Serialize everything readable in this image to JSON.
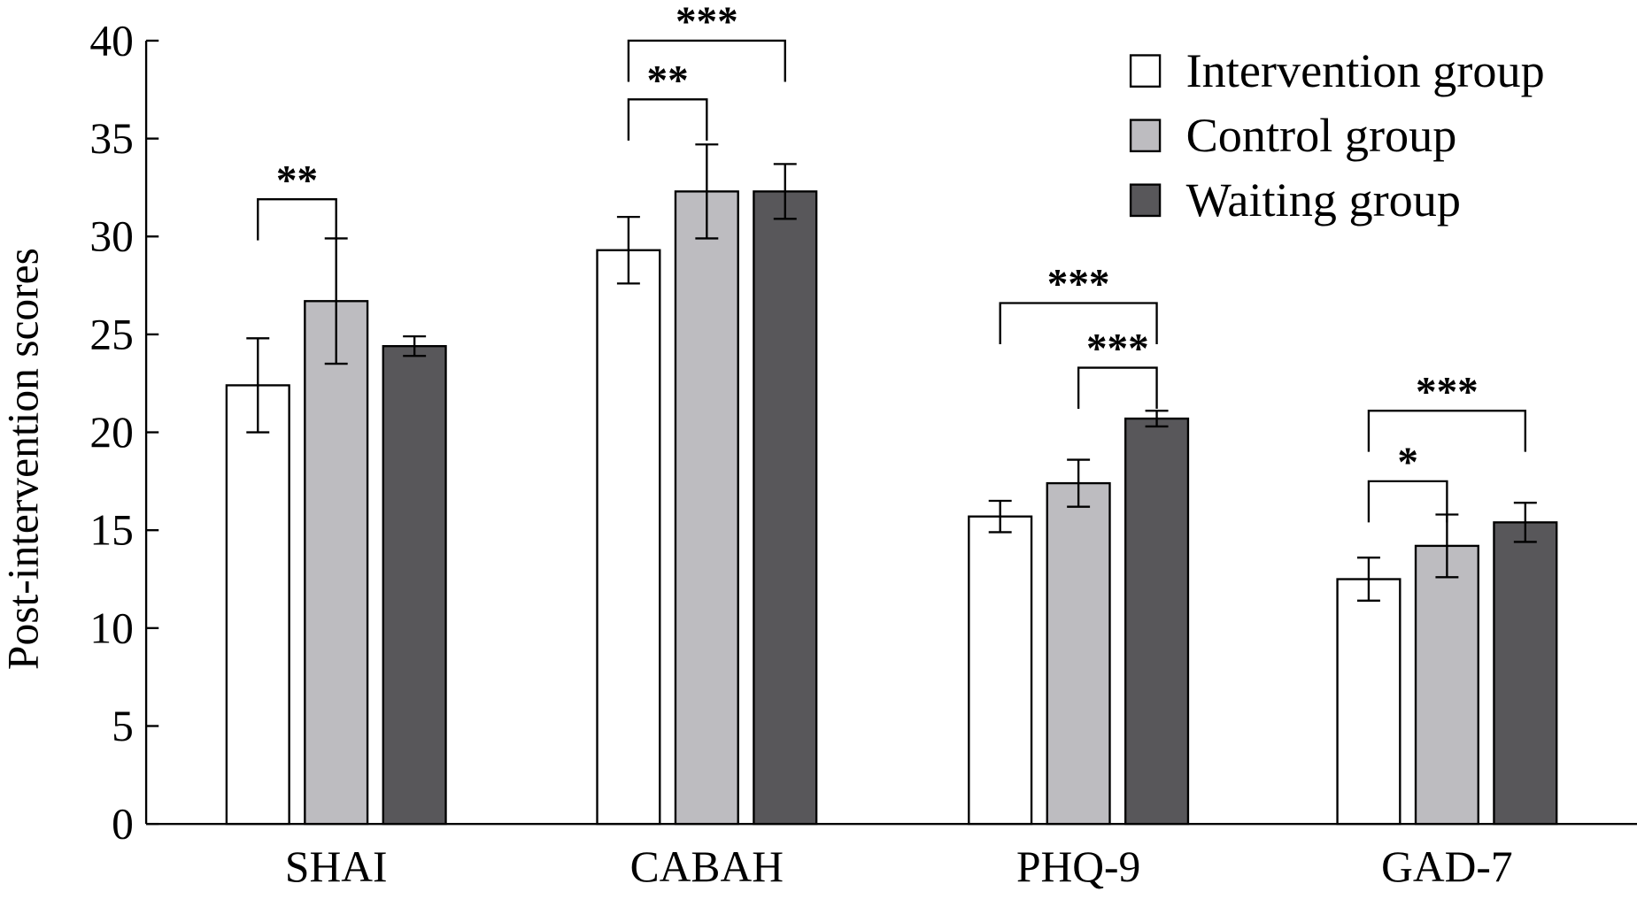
{
  "chart_data": {
    "type": "bar",
    "title": "",
    "xlabel": "",
    "ylabel": "Post-intervention scores",
    "ylim": [
      0,
      40
    ],
    "yticks": [
      "0",
      "5",
      "10",
      "15",
      "20",
      "25",
      "30",
      "35",
      "40"
    ],
    "categories": [
      "SHAI",
      "CABAH",
      "PHQ-9",
      "GAD-7"
    ],
    "legend_position": "top-right",
    "series": [
      {
        "name": "Intervention group",
        "color": "#ffffff",
        "values": [
          22.4,
          29.3,
          15.7,
          12.5
        ],
        "errors": [
          2.4,
          1.7,
          0.8,
          1.1
        ]
      },
      {
        "name": "Control group",
        "color": "#bdbcc0",
        "values": [
          26.7,
          32.3,
          17.4,
          14.2
        ],
        "errors": [
          3.2,
          2.4,
          1.2,
          1.6
        ]
      },
      {
        "name": "Waiting group",
        "color": "#58575a",
        "values": [
          24.4,
          32.3,
          20.7,
          15.4
        ],
        "errors": [
          0.5,
          1.4,
          0.4,
          1.0
        ]
      }
    ],
    "significance": [
      {
        "category": 0,
        "from": 0,
        "to": 1,
        "level": 31.9,
        "label": "**"
      },
      {
        "category": 1,
        "from": 0,
        "to": 1,
        "level": 37.0,
        "label": "**"
      },
      {
        "category": 1,
        "from": 0,
        "to": 2,
        "level": 40.0,
        "label": "***"
      },
      {
        "category": 2,
        "from": 0,
        "to": 2,
        "level": 26.6,
        "label": "***"
      },
      {
        "category": 2,
        "from": 1,
        "to": 2,
        "level": 23.3,
        "label": "***"
      },
      {
        "category": 3,
        "from": 0,
        "to": 1,
        "level": 17.5,
        "label": "*"
      },
      {
        "category": 3,
        "from": 0,
        "to": 2,
        "level": 21.1,
        "label": "***"
      }
    ]
  }
}
